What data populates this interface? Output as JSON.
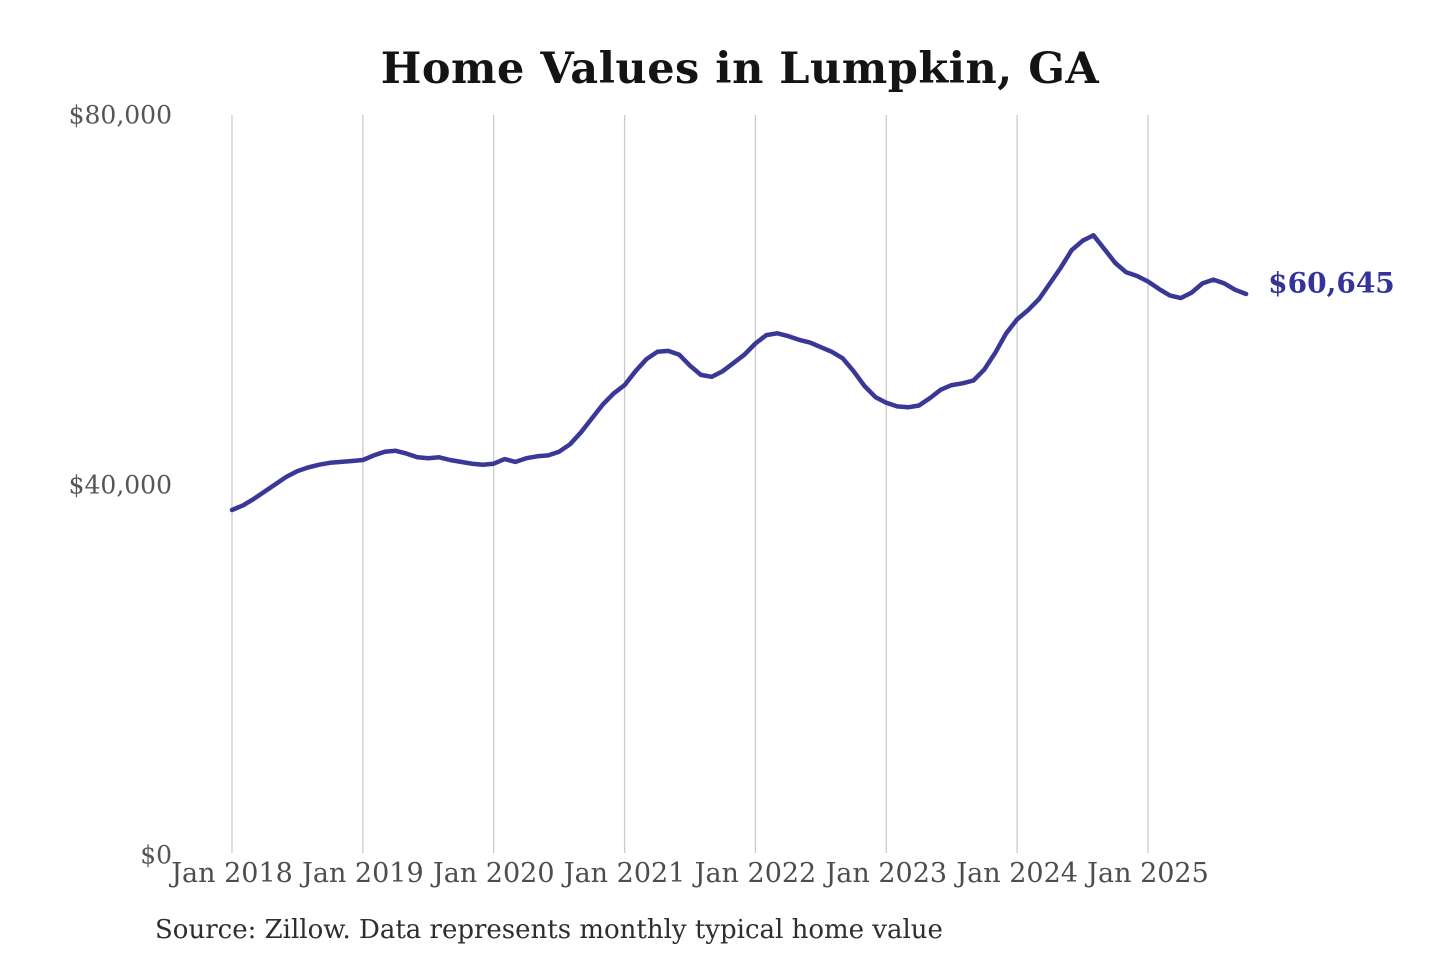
{
  "title": "Home Values in Lumpkin, GA",
  "source_note": "Source: Zillow. Data represents monthly typical home value",
  "end_label": "$60,645",
  "colors": {
    "line": "#3A3897",
    "end_label": "#333399",
    "gridline": "#cbcbcb",
    "axis_text": "#555555",
    "title_text": "#141414",
    "source_text": "#2e2e2e",
    "background": "#ffffff"
  },
  "chart_data": {
    "type": "line",
    "title": "Home Values in Lumpkin, GA",
    "xlabel": "",
    "ylabel": "",
    "ylim": [
      0,
      80000
    ],
    "grid": "vertical-only",
    "legend": "none",
    "x_tick_labels": [
      "Jan 2018",
      "Jan 2019",
      "Jan 2020",
      "Jan 2021",
      "Jan 2022",
      "Jan 2023",
      "Jan 2024",
      "Jan 2025"
    ],
    "y_ticks": [
      {
        "label": "$0",
        "value": 0
      },
      {
        "label": "$40,000",
        "value": 40000
      },
      {
        "label": "$80,000",
        "value": 80000
      }
    ],
    "series": [
      {
        "name": "Monthly typical home value",
        "start_month": "Jan 2018",
        "end_month": "Oct 2025",
        "frequency": "monthly",
        "final_value": 60645,
        "final_value_label": "$60,645",
        "values": [
          37300,
          37800,
          38500,
          39300,
          40100,
          40900,
          41500,
          41900,
          42200,
          42400,
          42500,
          42600,
          42700,
          43200,
          43600,
          43700,
          43400,
          43000,
          42900,
          43000,
          42700,
          42500,
          42300,
          42200,
          42300,
          42800,
          42500,
          42900,
          43100,
          43200,
          43600,
          44400,
          45700,
          47200,
          48700,
          49900,
          50800,
          52300,
          53600,
          54400,
          54500,
          54100,
          52900,
          51900,
          51700,
          52300,
          53200,
          54100,
          55300,
          56200,
          56400,
          56100,
          55700,
          55400,
          54900,
          54400,
          53700,
          52300,
          50700,
          49500,
          48900,
          48500,
          48400,
          48600,
          49400,
          50300,
          50800,
          51000,
          51300,
          52500,
          54300,
          56400,
          57900,
          58900,
          60100,
          61800,
          63500,
          65400,
          66400,
          67000,
          65500,
          64000,
          63000,
          62600,
          62000,
          61200,
          60500,
          60200,
          60800,
          61800,
          62200,
          61800,
          61100,
          60645
        ]
      }
    ]
  }
}
